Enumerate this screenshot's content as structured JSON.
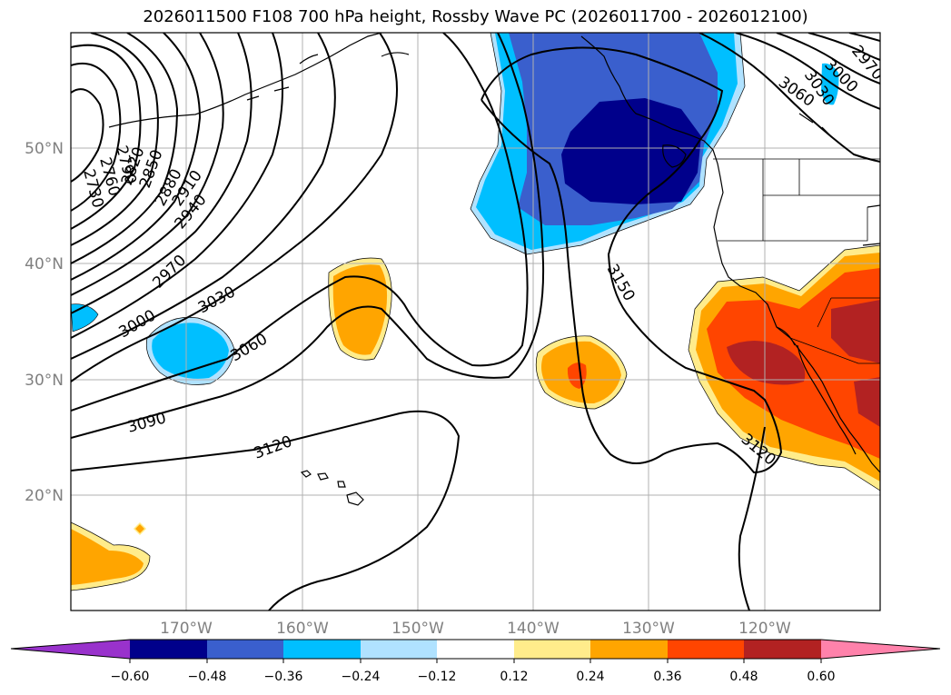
{
  "title": "2026011500 F108 700 hPa height, Rossby Wave PC (2026011700 - 2026012100)",
  "lat_labels": [
    "50°N",
    "40°N",
    "30°N",
    "20°N"
  ],
  "lon_labels": [
    "170°W",
    "160°W",
    "150°W",
    "140°W",
    "130°W",
    "120°W"
  ],
  "contour_labels": [
    "2730",
    "2760",
    "2790",
    "2820",
    "2850",
    "2880",
    "2910",
    "2940",
    "2970",
    "3000",
    "3030",
    "3060",
    "3090",
    "3120",
    "3150",
    "3120",
    "3060",
    "3030",
    "3000",
    "2970"
  ],
  "colorbar": {
    "ticks": [
      "−0.60",
      "−0.48",
      "−0.36",
      "−0.24",
      "−0.12",
      "0.12",
      "0.24",
      "0.36",
      "0.48",
      "0.60"
    ],
    "colors": [
      "#9932cc",
      "#00008b",
      "#3a5fcd",
      "#00bfff",
      "#b0e2ff",
      "#ffffff",
      "#ffec8b",
      "#ffa500",
      "#ff4500",
      "#b22222",
      "#ff82ab"
    ]
  },
  "colors": {
    "neg_light": "#b0e2ff",
    "neg_mid": "#00bfff",
    "neg_strong": "#3a5fcd",
    "neg_max": "#00008b",
    "pos_light": "#ffec8b",
    "pos_mid": "#ffa500",
    "pos_strong": "#ff4500",
    "pos_max": "#b22222"
  }
}
